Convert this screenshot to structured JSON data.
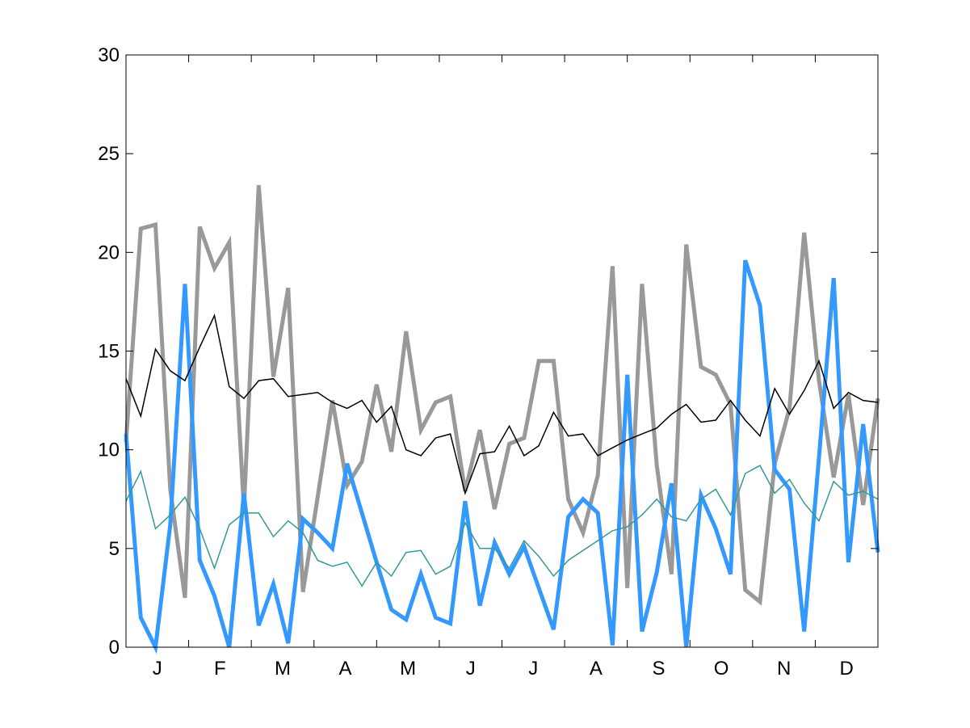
{
  "chart_data": {
    "type": "line",
    "title": "",
    "xlabel": "",
    "ylabel": "",
    "ylim": [
      0,
      30
    ],
    "yticks": [
      0,
      5,
      10,
      15,
      20,
      25,
      30
    ],
    "month_labels": [
      "J",
      "F",
      "M",
      "A",
      "M",
      "J",
      "J",
      "A",
      "S",
      "O",
      "N",
      "D"
    ],
    "points_per_month": 4,
    "grid": false,
    "legend": "none",
    "series": [
      {
        "color": "#999999",
        "style": "thick",
        "values": [
          10.4,
          21.2,
          21.4,
          8.0,
          2.5,
          21.3,
          19.2,
          20.5,
          7.0,
          23.4,
          13.7,
          18.2,
          2.8,
          7.6,
          12.5,
          8.2,
          9.4,
          13.3,
          9.9,
          16.0,
          11.0,
          12.4,
          12.7,
          7.9,
          11.0,
          7.0,
          10.3,
          10.6,
          14.5,
          14.5,
          7.5,
          5.8,
          8.7,
          19.3,
          3.0,
          18.4,
          9.2,
          3.7,
          20.4,
          14.2,
          13.8,
          12.3,
          2.9,
          2.3,
          9.3,
          12.1,
          21.0,
          13.5,
          8.6,
          12.8,
          7.2,
          12.6
        ]
      },
      {
        "color": "#3399ff",
        "style": "thick",
        "values": [
          10.8,
          1.5,
          0.0,
          6.2,
          18.4,
          4.4,
          2.6,
          0.0,
          7.8,
          1.1,
          3.2,
          0.2,
          6.5,
          5.8,
          5.0,
          9.3,
          6.8,
          4.3,
          1.9,
          1.4,
          3.7,
          1.5,
          1.2,
          7.4,
          2.1,
          5.3,
          3.7,
          5.1,
          3.0,
          0.9,
          6.6,
          7.5,
          6.8,
          0.1,
          13.8,
          0.8,
          3.8,
          8.3,
          0.0,
          7.7,
          6.0,
          3.7,
          19.6,
          17.3,
          9.0,
          8.0,
          0.8,
          9.6,
          18.7,
          4.3,
          11.3,
          4.8
        ]
      },
      {
        "color": "#000000",
        "style": "thin",
        "values": [
          13.6,
          11.7,
          15.1,
          14.0,
          13.5,
          15.2,
          16.8,
          13.2,
          12.6,
          13.5,
          13.6,
          12.7,
          12.8,
          12.9,
          12.4,
          12.1,
          12.5,
          11.4,
          12.2,
          10.0,
          9.7,
          10.6,
          10.8,
          7.8,
          9.8,
          9.9,
          11.2,
          9.7,
          10.2,
          11.9,
          10.7,
          10.8,
          9.7,
          10.1,
          10.5,
          10.8,
          11.1,
          11.8,
          12.3,
          11.4,
          11.5,
          12.5,
          11.5,
          10.7,
          13.1,
          11.8,
          13.0,
          14.5,
          12.1,
          12.9,
          12.5,
          12.4
        ]
      },
      {
        "color": "#339999",
        "style": "thin",
        "values": [
          7.4,
          8.9,
          6.0,
          6.7,
          7.6,
          6.0,
          4.0,
          6.2,
          6.8,
          6.8,
          5.6,
          6.4,
          5.8,
          4.4,
          4.1,
          4.3,
          3.1,
          4.3,
          3.6,
          4.8,
          4.9,
          3.7,
          4.1,
          6.3,
          5.0,
          5.0,
          4.0,
          5.4,
          4.6,
          3.6,
          4.4,
          4.9,
          5.4,
          5.9,
          6.1,
          6.7,
          7.5,
          6.6,
          6.4,
          7.5,
          8.0,
          6.7,
          8.8,
          9.2,
          7.8,
          8.5,
          7.3,
          6.4,
          8.4,
          7.7,
          7.9,
          7.5
        ]
      }
    ]
  }
}
